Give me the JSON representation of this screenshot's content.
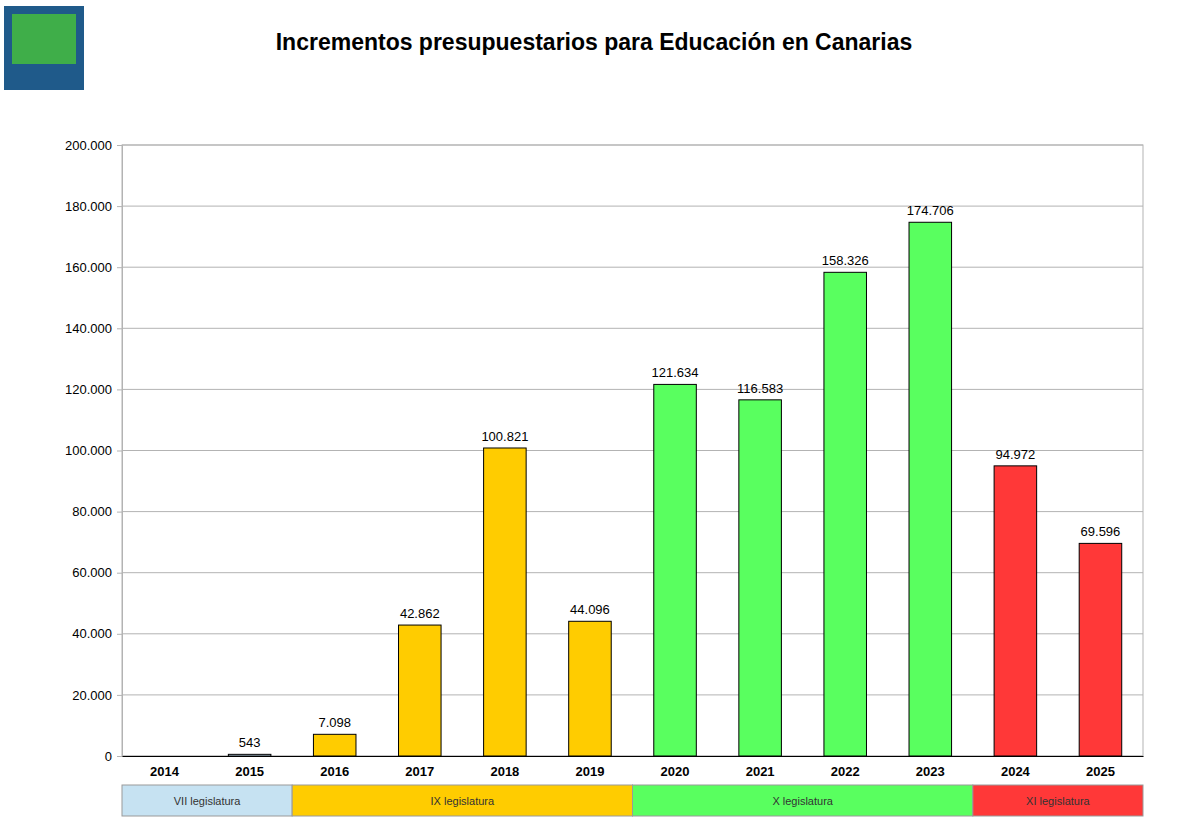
{
  "chart_data": {
    "type": "bar",
    "title": "Incrementos presupuestarios para Educación en Canarias",
    "categories": [
      "2014",
      "2015",
      "2016",
      "2017",
      "2018",
      "2019",
      "2020",
      "2021",
      "2022",
      "2023",
      "2024",
      "2025"
    ],
    "values": [
      null,
      543,
      7098,
      42862,
      100821,
      44096,
      121634,
      116583,
      158326,
      174706,
      94972,
      69596
    ],
    "value_labels": [
      null,
      "543",
      "7.098",
      "42.862",
      "100.821",
      "44.096",
      "121.634",
      "116.583",
      "158.326",
      "174.706",
      "94.972",
      "69.596"
    ],
    "colors": [
      "#c6e2f2",
      "#c6e2f2",
      "#ffcc00",
      "#ffcc00",
      "#ffcc00",
      "#ffcc00",
      "#59ff5f",
      "#59ff5f",
      "#59ff5f",
      "#59ff5f",
      "#ff3838",
      "#ff3838"
    ],
    "groups": [
      "VII legislatura",
      "VII legislatura",
      "IX legislatura",
      "IX legislatura",
      "IX legislatura",
      "IX legislatura",
      "X legislatura",
      "X legislatura",
      "X legislatura",
      "X legislatura",
      "XI legislatura",
      "XI legislatura"
    ],
    "ylim": [
      0,
      200000
    ],
    "yticks": [
      0,
      {
        "value": 20000,
        "label": "20.000"
      },
      {
        "value": 40000,
        "label": "40.000"
      },
      {
        "value": 60000,
        "label": "60.000"
      },
      {
        "value": 80000,
        "label": "80.000"
      },
      {
        "value": 100000,
        "label": "100.000"
      },
      {
        "value": 120000,
        "label": "120.000"
      },
      {
        "value": 140000,
        "label": "140.000"
      },
      {
        "value": 160000,
        "label": "160.000"
      },
      {
        "value": 180000,
        "label": "180.000"
      },
      {
        "value": 200000,
        "label": "200.000"
      }
    ],
    "grid": true,
    "data_labels": true
  }
}
